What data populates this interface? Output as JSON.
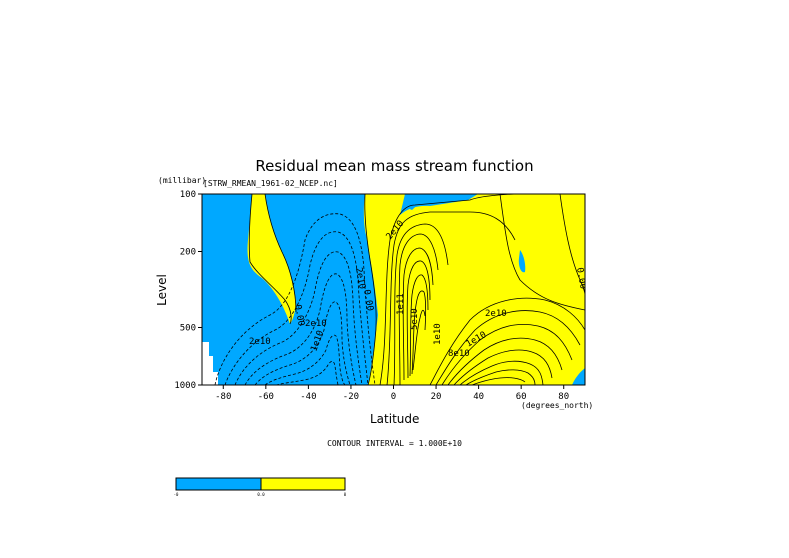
{
  "chart_data": {
    "type": "heatmap",
    "title": "Residual mean mass stream function",
    "file_label": "[STRW_RMEAN_1961-02_NCEP.nc]",
    "ylabel": "Level",
    "yunits": "(millibar)",
    "xlabel": "Latitude",
    "xunits": "(degrees_north)",
    "xlim": [
      -90,
      90
    ],
    "ylim": [
      1000,
      100
    ],
    "yscale": "log",
    "x_ticks": [
      "-80",
      "-60",
      "-40",
      "-20",
      "0",
      "20",
      "40",
      "60",
      "80"
    ],
    "y_ticks": [
      "100",
      "200",
      "500",
      "1000"
    ],
    "fill_colors": {
      "negative": "#00a8ff",
      "positive": "#ffff00"
    },
    "contour_labels": [
      "2e10",
      "0.00",
      "2e10",
      "1e10",
      "2e10",
      "0.00",
      "2e10",
      "1e11",
      "5e10",
      "2e10",
      "1e10",
      "8e10",
      "1e10",
      "0.00"
    ],
    "contour_interval_text": "CONTOUR INTERVAL = 1.000E+10",
    "colorbar": {
      "labels": [
        "-0",
        "0.0",
        "0"
      ]
    }
  }
}
